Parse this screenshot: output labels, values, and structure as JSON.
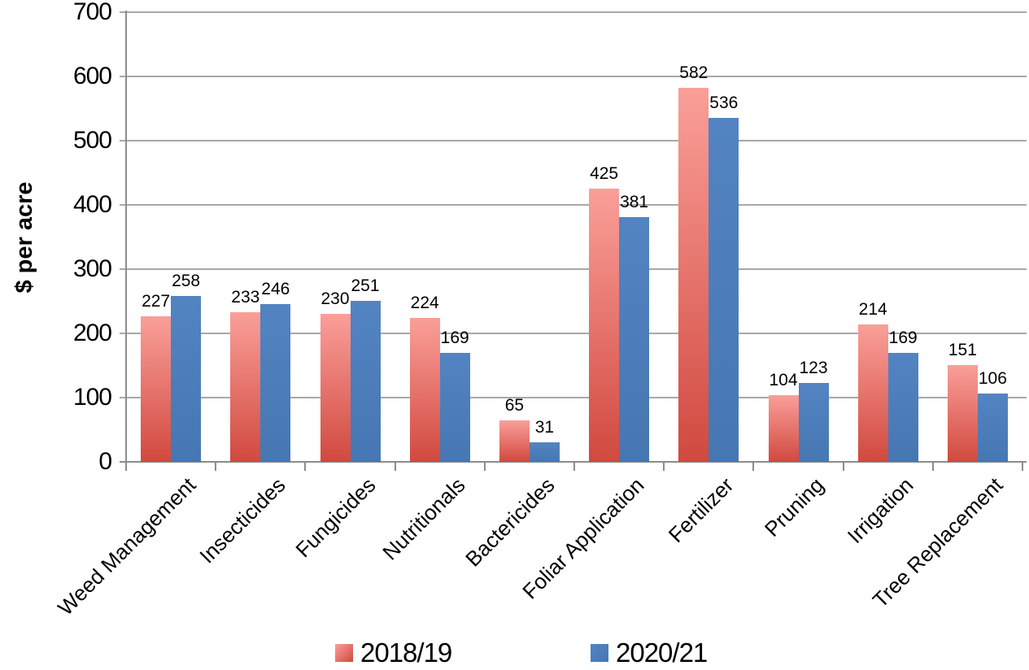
{
  "chart_data": {
    "type": "bar",
    "title": "",
    "xlabel": "",
    "ylabel": "$ per acre",
    "ylim": [
      0,
      700
    ],
    "yticks": [
      0,
      100,
      200,
      300,
      400,
      500,
      600,
      700
    ],
    "grid": true,
    "legend_position": "bottom",
    "categories": [
      "Weed Management",
      "Insecticides",
      "Fungicides",
      "Nutritionals",
      "Bactericides",
      "Foliar Application",
      "Fertilizer",
      "Pruning",
      "Irrigation",
      "Tree Replacement"
    ],
    "series": [
      {
        "name": "2018/19",
        "values": [
          227,
          233,
          230,
          224,
          65,
          425,
          582,
          104,
          214,
          151
        ],
        "gradient": [
          "#FA9F99",
          "#D1493F"
        ]
      },
      {
        "name": "2020/21",
        "values": [
          258,
          246,
          251,
          169,
          31,
          381,
          536,
          123,
          169,
          106
        ],
        "gradient": [
          "#5384C2",
          "#4677B2"
        ]
      }
    ]
  },
  "colors": {
    "grid": "#A8A8A8",
    "axis": "#8C8C8C",
    "text": "#000000",
    "background": "#FFFFFF"
  }
}
